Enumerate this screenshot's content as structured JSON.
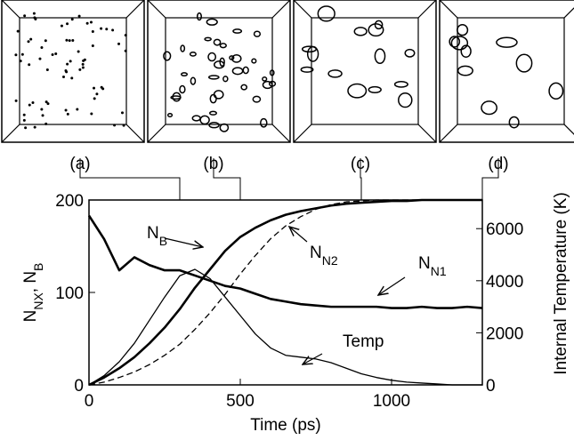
{
  "chart_data": {
    "type": "line",
    "snapshots": [
      {
        "label": "(a)",
        "time": 300
      },
      {
        "label": "(b)",
        "time": 500
      },
      {
        "label": "(c)",
        "time": 900
      },
      {
        "label": "(d)",
        "time": 1300
      }
    ],
    "xlabel": "Time (ps)",
    "ylabel": [
      {
        "text": "N"
      },
      {
        "text": "NX",
        "sub": true
      },
      {
        "text": ", N"
      },
      {
        "text": "B",
        "sub": true
      }
    ],
    "y2label": "Internal Temperature (K)",
    "xlim": [
      0,
      1300
    ],
    "xticks": [
      0,
      500,
      1000
    ],
    "ylim": [
      0,
      200
    ],
    "yticks": [
      0,
      100,
      200
    ],
    "y2lim": [
      0,
      7100
    ],
    "y2ticks": [
      0,
      2000,
      4000,
      6000
    ],
    "x": [
      0,
      50,
      100,
      150,
      200,
      250,
      300,
      350,
      400,
      450,
      500,
      550,
      600,
      650,
      700,
      750,
      800,
      850,
      900,
      950,
      1000,
      1050,
      1100,
      1150,
      1200,
      1250,
      1300
    ],
    "series": [
      {
        "name": [
          {
            "text": "N"
          },
          {
            "text": "B",
            "sub": true
          }
        ],
        "color": "#000000",
        "style": "thick",
        "values": [
          0,
          8,
          18,
          30,
          45,
          62,
          82,
          105,
          125,
          145,
          160,
          170,
          178,
          184,
          188,
          191,
          194,
          196,
          197,
          198,
          199,
          199,
          200,
          200,
          200,
          200,
          200
        ]
      },
      {
        "name": [
          {
            "text": "N"
          },
          {
            "text": "N2",
            "sub": true
          }
        ],
        "color": "#000000",
        "style": "dashed",
        "values": [
          0,
          3,
          8,
          14,
          22,
          32,
          44,
          60,
          78,
          98,
          120,
          140,
          158,
          172,
          182,
          190,
          195,
          198,
          199,
          200,
          200,
          200,
          200,
          200,
          200,
          200,
          200
        ]
      },
      {
        "name": [
          {
            "text": "N"
          },
          {
            "text": "N1",
            "sub": true
          }
        ],
        "color": "#000000",
        "style": "thin",
        "values": [
          0,
          10,
          25,
          45,
          70,
          95,
          118,
          125,
          115,
          95,
          75,
          55,
          40,
          32,
          30,
          28,
          24,
          18,
          12,
          8,
          5,
          3,
          2,
          1,
          0,
          0,
          0
        ]
      },
      {
        "name": [
          {
            "text": "Temp"
          }
        ],
        "color": "#000000",
        "style": "thick",
        "axis": "y2",
        "values": [
          6500,
          5600,
          4400,
          4900,
          4600,
          4400,
          4400,
          4200,
          4000,
          3800,
          3700,
          3500,
          3300,
          3200,
          3100,
          3050,
          3000,
          3000,
          3000,
          3000,
          2950,
          2950,
          3000,
          2950,
          2950,
          3000,
          2950
        ]
      }
    ]
  }
}
